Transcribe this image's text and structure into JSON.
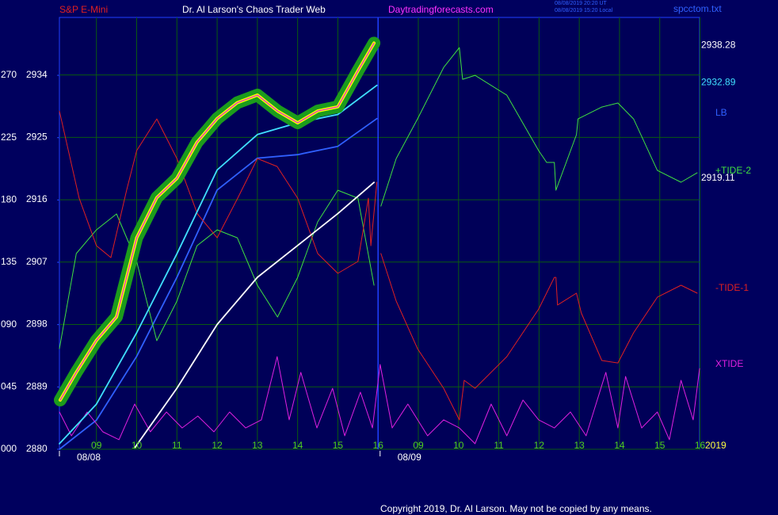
{
  "header": {
    "left": "S&P E-Mini",
    "title": "Dr. Al Larson's Chaos Trader Web",
    "site": "Daytradingforecasts.com",
    "stamp_ut": "08/08/2019 20:20 UT",
    "stamp_local": "08/08/2019 15:20 Local",
    "file": "spcctom.txt"
  },
  "footer": "Copyright 2019, Dr. Al Larson. May not be copied by any means.",
  "chart_data": {
    "type": "line",
    "xlim": [
      8.08,
      23.99
    ],
    "xticks": [
      {
        "value": 9,
        "label": "09"
      },
      10,
      11,
      12,
      13,
      14,
      15,
      16,
      {
        "value": 17,
        "label": "09"
      },
      {
        "value": 18,
        "label": "10"
      },
      {
        "value": 19,
        "label": "11"
      },
      {
        "value": 20,
        "label": "12"
      },
      {
        "value": 21,
        "label": "13"
      },
      {
        "value": 22,
        "label": "14"
      },
      {
        "value": 23,
        "label": "15"
      },
      {
        "value": 24,
        "label": "16"
      }
    ],
    "date_labels": [
      {
        "value": 8.08,
        "label": "08/08"
      },
      {
        "value": 16.05,
        "label": "08/09"
      }
    ],
    "ylim": [
      2880,
      2942.3
    ],
    "yticks": [
      2880,
      2889,
      2898,
      2907,
      2916,
      2925,
      2934
    ],
    "y2lim": [
      0,
      311.8
    ],
    "y2ticks": [
      {
        "value": 0,
        "label": "000"
      },
      {
        "value": 45,
        "label": "045"
      },
      {
        "value": 90,
        "label": "090"
      },
      135,
      180,
      225,
      270
    ],
    "grid": true,
    "day_divider": 16.0,
    "year_label": "2019",
    "price_labels": [
      2938.28,
      2932.89,
      2919.11
    ],
    "price_label_colors": [
      "#ffffff",
      "#40e0ff",
      "#ffffff"
    ],
    "series": [
      {
        "color": "#3060ff",
        "name": "LB",
        "x": [
          8.08,
          9,
          10,
          11,
          12,
          13,
          14,
          15,
          15.97
        ],
        "values": [
          2880.0,
          2884.2,
          2893.4,
          2904.8,
          2917.4,
          2922.0,
          2922.5,
          2923.7,
          2927.7
        ]
      },
      {
        "color": "#40e040",
        "name": "+TIDE-2",
        "axis": "y2",
        "x": [
          8.08,
          8.5,
          9.0,
          9.5,
          10.0,
          10.5,
          11.0,
          11.5,
          12.0,
          12.5,
          13.0,
          13.5,
          14.0,
          14.5,
          15.0,
          15.5,
          15.9,
          16.0,
          16.07,
          16.45,
          16.98,
          17.63,
          18.02,
          18.1,
          18.41,
          19.2,
          19.99,
          20.19,
          20.38,
          20.42,
          20.93,
          20.97,
          21.56,
          21.96,
          22.35,
          22.94,
          23.53,
          23.93
        ],
        "values": [
          72.6,
          141.3,
          158.4,
          169.9,
          135.6,
          78.4,
          107.0,
          147.0,
          158.4,
          152.7,
          118.4,
          95.5,
          124.1,
          164.2,
          187.0,
          181.3,
          118.4,
          null,
          175.6,
          209.9,
          238.5,
          275.7,
          290.0,
          267.1,
          270.0,
          255.7,
          215.6,
          207.1,
          207.1,
          187.0,
          227.1,
          238.5,
          247.1,
          250.0,
          238.5,
          201.3,
          192.8,
          199.6
        ]
      },
      {
        "color": "#e02020",
        "name": "-TIDE-1",
        "axis": "y2",
        "x": [
          8.08,
          8.57,
          9.0,
          9.36,
          9.75,
          10.0,
          10.5,
          11.0,
          11.51,
          12.0,
          12.51,
          13.0,
          13.49,
          14.0,
          14.5,
          15.0,
          15.5,
          15.76,
          15.82,
          15.97,
          16.0,
          16.07,
          16.45,
          16.98,
          17.63,
          18.02,
          18.14,
          18.41,
          19.2,
          19.99,
          20.38,
          20.42,
          20.46,
          20.93,
          21.05,
          21.56,
          21.96,
          22.35,
          22.94,
          23.53,
          23.93
        ],
        "values": [
          244.2,
          181.3,
          147.0,
          138.4,
          187.0,
          215.6,
          238.5,
          209.9,
          169.9,
          152.7,
          181.3,
          209.9,
          204.2,
          181.3,
          141.3,
          127.0,
          135.6,
          181.3,
          147.0,
          192.8,
          null,
          141.3,
          107.0,
          72.6,
          44.0,
          21.2,
          49.8,
          44.0,
          66.9,
          101.2,
          124.1,
          124.1,
          104.1,
          112.7,
          98.4,
          64.1,
          62.3,
          84.1,
          109.8,
          118.4,
          112.7
        ]
      },
      {
        "color": "#e020e0",
        "name": "XTIDE",
        "axis": "y2",
        "x": [
          8.08,
          8.38,
          8.77,
          9.16,
          9.56,
          9.95,
          10.34,
          10.74,
          11.13,
          11.52,
          11.92,
          12.31,
          12.71,
          13.1,
          13.49,
          13.79,
          14.08,
          14.48,
          14.87,
          15.17,
          15.56,
          15.86,
          16.05,
          16.35,
          16.74,
          17.23,
          17.63,
          18.02,
          18.41,
          18.81,
          19.2,
          19.6,
          19.99,
          20.38,
          20.78,
          21.17,
          21.66,
          21.96,
          22.15,
          22.55,
          22.94,
          23.24,
          23.53,
          23.83,
          23.99
        ],
        "values": [
          26.9,
          9.7,
          26.9,
          12.6,
          6.9,
          32.6,
          12.6,
          26.9,
          15.4,
          24.0,
          12.6,
          26.9,
          15.4,
          21.2,
          66.9,
          21.2,
          55.5,
          15.4,
          44.0,
          9.7,
          41.2,
          15.4,
          61.2,
          15.4,
          32.6,
          9.7,
          21.2,
          15.4,
          4.0,
          32.6,
          9.7,
          35.5,
          21.2,
          15.4,
          26.9,
          9.7,
          55.5,
          15.4,
          52.6,
          15.4,
          26.9,
          6.9,
          49.8,
          21.2,
          58.3
        ]
      },
      {
        "color": "#ffffff",
        "x": [
          9.95,
          11,
          12,
          13,
          14,
          15,
          15.9
        ],
        "values": [
          2880.2,
          2888.8,
          2898.0,
          2904.8,
          2909.4,
          2914.0,
          2918.5
        ]
      },
      {
        "color": "#40e0ff",
        "x": [
          8.08,
          9,
          10,
          11,
          12,
          13,
          14,
          15,
          15.97
        ],
        "values": [
          2880.8,
          2886.5,
          2896.8,
          2908.2,
          2920.3,
          2925.4,
          2927.1,
          2928.3,
          2932.5
        ]
      },
      {
        "color": "#ffff00",
        "glow": "#1c9c1c",
        "inner": "#e020e0",
        "x": [
          8.1,
          8.5,
          9.0,
          9.5,
          10.0,
          10.5,
          11.0,
          11.5,
          12.0,
          12.5,
          13.0,
          13.5,
          14.0,
          14.5,
          15.0,
          15.5,
          15.9
        ],
        "values": [
          2887.1,
          2891.1,
          2895.7,
          2899.1,
          2910.5,
          2916.3,
          2919.1,
          2924.3,
          2927.7,
          2930.0,
          2931.1,
          2928.8,
          2927.1,
          2928.8,
          2929.4,
          2934.6,
          2938.6
        ]
      }
    ]
  }
}
